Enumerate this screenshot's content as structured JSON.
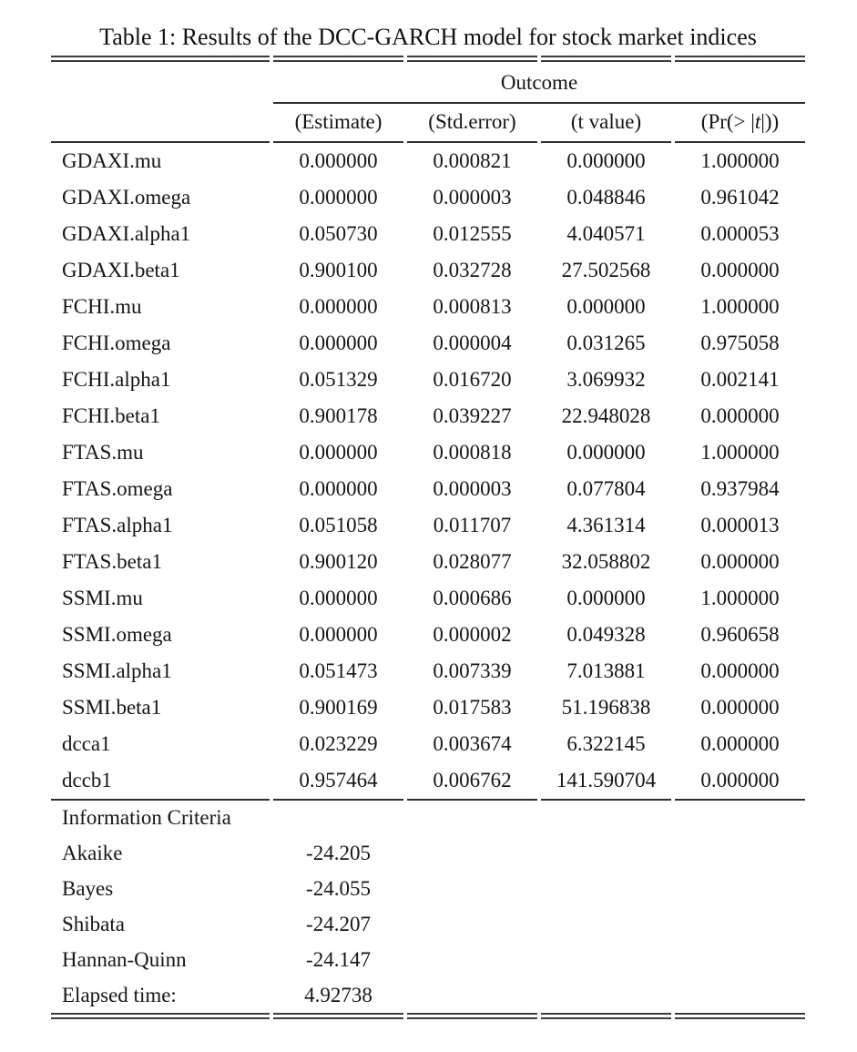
{
  "title": "Table 1: Results of the DCC-GARCH model for stock market indices",
  "colors": {
    "background": "#ffffff",
    "text": "#1a1a1a",
    "rule": "#3c3c3c"
  },
  "table": {
    "group_header": "Outcome",
    "columns": [
      "(Estimate)",
      "(Std.error)",
      "(t value)",
      "(Pr(> |t|))"
    ],
    "pr_parts": [
      "(Pr(> |",
      "t",
      "|))"
    ],
    "rows": [
      {
        "label": "GDAXI.mu",
        "values": [
          "0.000000",
          "0.000821",
          "0.000000",
          "1.000000"
        ]
      },
      {
        "label": "GDAXI.omega",
        "values": [
          "0.000000",
          "0.000003",
          "0.048846",
          "0.961042"
        ]
      },
      {
        "label": "GDAXI.alpha1",
        "values": [
          "0.050730",
          "0.012555",
          "4.040571",
          "0.000053"
        ]
      },
      {
        "label": "GDAXI.beta1",
        "values": [
          "0.900100",
          "0.032728",
          "27.502568",
          "0.000000"
        ]
      },
      {
        "label": "FCHI.mu",
        "values": [
          "0.000000",
          "0.000813",
          "0.000000",
          "1.000000"
        ]
      },
      {
        "label": "FCHI.omega",
        "values": [
          "0.000000",
          "0.000004",
          "0.031265",
          "0.975058"
        ]
      },
      {
        "label": "FCHI.alpha1",
        "values": [
          "0.051329",
          "0.016720",
          "3.069932",
          "0.002141"
        ]
      },
      {
        "label": "FCHI.beta1",
        "values": [
          "0.900178",
          "0.039227",
          "22.948028",
          "0.000000"
        ]
      },
      {
        "label": "FTAS.mu",
        "values": [
          "0.000000",
          "0.000818",
          "0.000000",
          "1.000000"
        ]
      },
      {
        "label": "FTAS.omega",
        "values": [
          "0.000000",
          "0.000003",
          "0.077804",
          "0.937984"
        ]
      },
      {
        "label": "FTAS.alpha1",
        "values": [
          "0.051058",
          "0.011707",
          "4.361314",
          "0.000013"
        ]
      },
      {
        "label": "FTAS.beta1",
        "values": [
          "0.900120",
          "0.028077",
          "32.058802",
          "0.000000"
        ]
      },
      {
        "label": "SSMI.mu",
        "values": [
          "0.000000",
          "0.000686",
          "0.000000",
          "1.000000"
        ]
      },
      {
        "label": "SSMI.omega",
        "values": [
          "0.000000",
          "0.000002",
          "0.049328",
          "0.960658"
        ]
      },
      {
        "label": "SSMI.alpha1",
        "values": [
          "0.051473",
          "0.007339",
          "7.013881",
          "0.000000"
        ]
      },
      {
        "label": "SSMI.beta1",
        "values": [
          "0.900169",
          "0.017583",
          "51.196838",
          "0.000000"
        ]
      },
      {
        "label": "dcca1",
        "values": [
          "0.023229",
          "0.003674",
          "6.322145",
          "0.000000"
        ]
      },
      {
        "label": "dccb1",
        "values": [
          "0.957464",
          "0.006762",
          "141.590704",
          "0.000000"
        ]
      }
    ],
    "criteria_header": "Information Criteria",
    "criteria": [
      {
        "label": "Akaike",
        "value": "-24.205"
      },
      {
        "label": "Bayes",
        "value": "-24.055"
      },
      {
        "label": "Shibata",
        "value": "-24.207"
      },
      {
        "label": "Hannan-Quinn",
        "value": "-24.147"
      },
      {
        "label": "Elapsed time:",
        "value": "4.92738"
      }
    ]
  }
}
